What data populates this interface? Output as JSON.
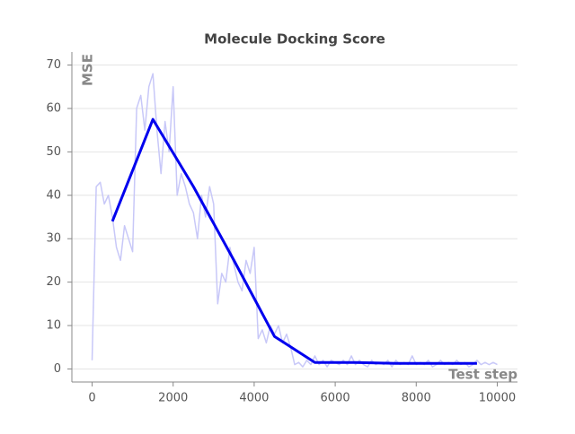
{
  "chart_data": {
    "type": "line",
    "title": "Molecule Docking Score",
    "x_label": "Test step",
    "y_label": "MSE",
    "xlim": [
      -500,
      10500
    ],
    "ylim": [
      -3,
      73
    ],
    "xticks": [
      0,
      2000,
      4000,
      6000,
      8000,
      10000
    ],
    "yticks": [
      0,
      10,
      20,
      30,
      40,
      50,
      60,
      70
    ],
    "grid": true,
    "series": [
      {
        "color": "#c8c8f8",
        "width": 1.5,
        "x": [
          0,
          100,
          200,
          300,
          400,
          500,
          600,
          700,
          800,
          900,
          1000,
          1100,
          1200,
          1300,
          1400,
          1500,
          1600,
          1700,
          1800,
          1900,
          2000,
          2100,
          2200,
          2300,
          2400,
          2500,
          2600,
          2700,
          2800,
          2900,
          3000,
          3100,
          3200,
          3300,
          3400,
          3500,
          3600,
          3700,
          3800,
          3900,
          4000,
          4100,
          4200,
          4300,
          4400,
          4500,
          4600,
          4700,
          4800,
          4900,
          5000,
          5100,
          5200,
          5300,
          5400,
          5500,
          5600,
          5700,
          5800,
          5900,
          6000,
          6100,
          6200,
          6300,
          6400,
          6500,
          6600,
          6700,
          6800,
          6900,
          7000,
          7100,
          7200,
          7300,
          7400,
          7500,
          7600,
          7700,
          7800,
          7900,
          8000,
          8100,
          8200,
          8300,
          8400,
          8500,
          8600,
          8700,
          8800,
          8900,
          9000,
          9100,
          9200,
          9300,
          9400,
          9500,
          9600,
          9700,
          9800,
          9900,
          10000
        ],
        "values": [
          2,
          42,
          43,
          38,
          40,
          35,
          28,
          25,
          33,
          30,
          27,
          60,
          63,
          55,
          65,
          68,
          55,
          45,
          57,
          50,
          65,
          40,
          45,
          42,
          38,
          36,
          30,
          40,
          35,
          42,
          38,
          15,
          22,
          20,
          28,
          24,
          20,
          18,
          25,
          22,
          28,
          7,
          9,
          6,
          10,
          8,
          10,
          6,
          8,
          5,
          1,
          1.5,
          0.5,
          2,
          1,
          3,
          1,
          2,
          0.5,
          2,
          1.5,
          1,
          2,
          1,
          3,
          1,
          2,
          1,
          0.5,
          2,
          1,
          1.5,
          1,
          2,
          0.5,
          2,
          1,
          1.5,
          1,
          3,
          1,
          1.5,
          1,
          2,
          0.5,
          1,
          2,
          1,
          1.5,
          1,
          2,
          1,
          1.5,
          0.5,
          1,
          2,
          1,
          1.5,
          1,
          1.5,
          1
        ]
      },
      {
        "color": "#0000ee",
        "width": 3,
        "x": [
          500,
          1500,
          2500,
          3500,
          4500,
          5500,
          6500,
          7500,
          8500,
          9500
        ],
        "values": [
          34,
          57.5,
          42,
          25,
          7.5,
          1.5,
          1.5,
          1.3,
          1.3,
          1.3
        ]
      }
    ]
  }
}
